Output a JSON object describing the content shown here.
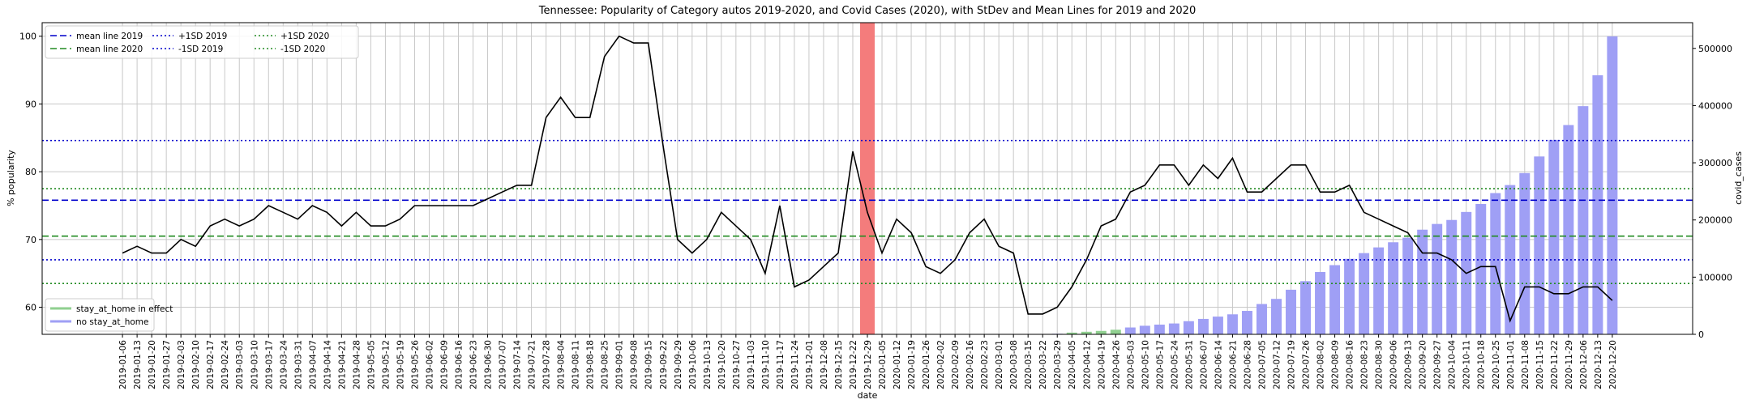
{
  "chart_data": {
    "type": "combo",
    "title": "Tennessee: Popularity of Category autos 2019-2020, and Covid Cases (2020), with StDev and Mean Lines for 2019 and 2020",
    "xlabel": "date",
    "ylabel": "% popularity",
    "y2label": "covid_cases",
    "categories": [
      "2019-01-06",
      "2019-01-13",
      "2019-01-20",
      "2019-01-27",
      "2019-02-03",
      "2019-02-10",
      "2019-02-17",
      "2019-02-24",
      "2019-03-03",
      "2019-03-10",
      "2019-03-17",
      "2019-03-24",
      "2019-03-31",
      "2019-04-07",
      "2019-04-14",
      "2019-04-21",
      "2019-04-28",
      "2019-05-05",
      "2019-05-12",
      "2019-05-19",
      "2019-05-26",
      "2019-06-02",
      "2019-06-09",
      "2019-06-16",
      "2019-06-23",
      "2019-06-30",
      "2019-07-07",
      "2019-07-14",
      "2019-07-21",
      "2019-07-28",
      "2019-08-04",
      "2019-08-11",
      "2019-08-18",
      "2019-08-25",
      "2019-09-01",
      "2019-09-08",
      "2019-09-15",
      "2019-09-22",
      "2019-09-29",
      "2019-10-06",
      "2019-10-13",
      "2019-10-20",
      "2019-10-27",
      "2019-11-03",
      "2019-11-10",
      "2019-11-17",
      "2019-11-24",
      "2019-12-01",
      "2019-12-08",
      "2019-12-15",
      "2019-12-22",
      "2019-12-29",
      "2020-01-05",
      "2020-01-12",
      "2020-01-19",
      "2020-01-26",
      "2020-02-02",
      "2020-02-09",
      "2020-02-16",
      "2020-02-23",
      "2020-03-01",
      "2020-03-08",
      "2020-03-15",
      "2020-03-22",
      "2020-03-29",
      "2020-04-05",
      "2020-04-12",
      "2020-04-19",
      "2020-04-26",
      "2020-05-03",
      "2020-05-10",
      "2020-05-17",
      "2020-05-24",
      "2020-05-31",
      "2020-06-07",
      "2020-06-14",
      "2020-06-21",
      "2020-06-28",
      "2020-07-05",
      "2020-07-12",
      "2020-07-19",
      "2020-07-26",
      "2020-08-02",
      "2020-08-09",
      "2020-08-16",
      "2020-08-23",
      "2020-08-30",
      "2020-09-06",
      "2020-09-13",
      "2020-09-20",
      "2020-09-27",
      "2020-10-04",
      "2020-10-11",
      "2020-10-18",
      "2020-10-25",
      "2020-11-01",
      "2020-11-08",
      "2020-11-15",
      "2020-11-22",
      "2020-11-29",
      "2020-12-06",
      "2020-12-13",
      "2020-12-20"
    ],
    "line": {
      "color": "#000000",
      "values": [
        68,
        69,
        68,
        68,
        70,
        69,
        72,
        73,
        72,
        73,
        75,
        74,
        73,
        75,
        74,
        72,
        74,
        72,
        72,
        73,
        75,
        75,
        75,
        75,
        75,
        76,
        77,
        78,
        78,
        88,
        91,
        88,
        88,
        97,
        100,
        99,
        99,
        84,
        70,
        68,
        70,
        74,
        72,
        70,
        65,
        75,
        63,
        64,
        66,
        68,
        83,
        74,
        68,
        73,
        71,
        66,
        65,
        67,
        71,
        73,
        69,
        68,
        59,
        59,
        60,
        63,
        67,
        72,
        73,
        77,
        78,
        81,
        81,
        78,
        81,
        79,
        82,
        77,
        77,
        79,
        81,
        81,
        77,
        77,
        78,
        74,
        73,
        72,
        71,
        68,
        68,
        67,
        65,
        66,
        66,
        58,
        63,
        63,
        62,
        62,
        63,
        63,
        61
      ]
    },
    "series": [
      {
        "name": "stay_at_home in effect",
        "color": "#90d090",
        "axis": "y2",
        "values": [
          null,
          null,
          null,
          null,
          null,
          null,
          null,
          null,
          null,
          null,
          null,
          null,
          null,
          null,
          null,
          null,
          null,
          null,
          null,
          null,
          null,
          null,
          null,
          null,
          null,
          null,
          null,
          null,
          null,
          null,
          null,
          null,
          null,
          null,
          null,
          null,
          null,
          null,
          null,
          null,
          null,
          null,
          null,
          null,
          null,
          null,
          null,
          null,
          null,
          null,
          null,
          null,
          null,
          null,
          null,
          null,
          null,
          null,
          null,
          null,
          null,
          null,
          null,
          null,
          null,
          3000,
          4500,
          6000,
          8000,
          null,
          null,
          null,
          null,
          null,
          null,
          null,
          null,
          null,
          null,
          null,
          null,
          null,
          null,
          null,
          null,
          null,
          null,
          null,
          null,
          null,
          null,
          null,
          null,
          null,
          null,
          null,
          null,
          null,
          null,
          null,
          null,
          null,
          null
        ]
      },
      {
        "name": "no stay_at_home",
        "color": "#9f9ff5",
        "axis": "y2",
        "values": [
          null,
          null,
          null,
          null,
          null,
          null,
          null,
          null,
          null,
          null,
          null,
          null,
          null,
          null,
          null,
          null,
          null,
          null,
          null,
          null,
          null,
          null,
          null,
          null,
          null,
          null,
          null,
          null,
          null,
          null,
          null,
          null,
          null,
          null,
          null,
          null,
          null,
          null,
          null,
          null,
          null,
          null,
          null,
          null,
          null,
          null,
          null,
          null,
          null,
          null,
          null,
          null,
          null,
          null,
          null,
          null,
          null,
          null,
          null,
          null,
          null,
          null,
          null,
          500,
          1000,
          null,
          null,
          null,
          null,
          12000,
          15000,
          17000,
          19000,
          23000,
          27000,
          31000,
          35000,
          41000,
          53000,
          62000,
          78000,
          93000,
          109000,
          121000,
          132000,
          142000,
          152000,
          161000,
          169000,
          183000,
          193000,
          200000,
          214000,
          228000,
          247000,
          261000,
          282000,
          311000,
          340000,
          366000,
          399000,
          453000,
          521000
        ]
      }
    ],
    "hlines": [
      {
        "name": "mean line 2019",
        "color": "#0000cc",
        "style": "dashed",
        "value": 75.8
      },
      {
        "name": "mean line 2020",
        "color": "#228b22",
        "style": "dashed",
        "value": 70.5
      },
      {
        "name": "+1SD 2019",
        "color": "#0000cc",
        "style": "dotted",
        "value": 84.6
      },
      {
        "name": "-1SD 2019",
        "color": "#0000cc",
        "style": "dotted",
        "value": 67.0
      },
      {
        "name": "+1SD 2020",
        "color": "#228b22",
        "style": "dotted",
        "value": 77.5
      },
      {
        "name": "-1SD 2020",
        "color": "#228b22",
        "style": "dotted",
        "value": 63.5
      }
    ],
    "highlight": {
      "category": "2019-12-29",
      "color": "#f47c7c"
    },
    "ylim": [
      56,
      102
    ],
    "yticks": [
      60,
      70,
      80,
      90,
      100
    ],
    "y2lim": [
      0,
      545000
    ],
    "y2ticks": [
      0,
      100000,
      200000,
      300000,
      400000,
      500000
    ],
    "grid": true,
    "hline_legend_loc": "upper left",
    "bar_legend_loc": "lower left"
  }
}
